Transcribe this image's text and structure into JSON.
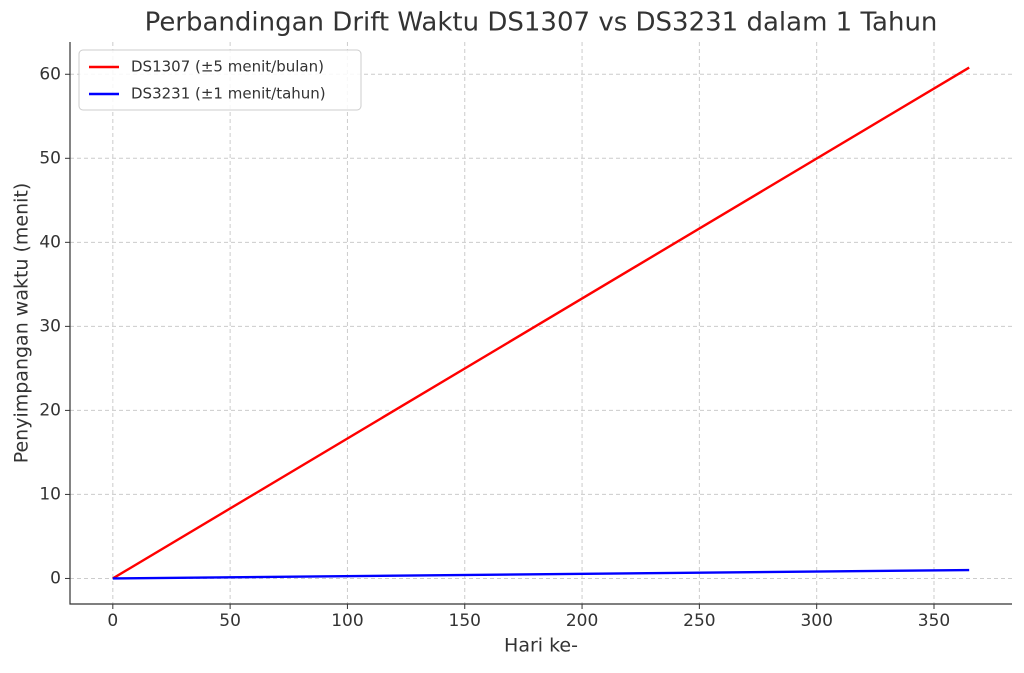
{
  "chart_data": {
    "type": "line",
    "title": "Perbandingan Drift Waktu DS1307 vs DS3231 dalam 1 Tahun",
    "x_label": "Hari ke-",
    "y_label": "Penyimpangan waktu (menit)",
    "x": [
      0,
      365
    ],
    "series": [
      {
        "name": "DS1307 (±5 menit/bulan)",
        "color": "#ff0000",
        "values": [
          0,
          60.8
        ]
      },
      {
        "name": "DS3231 (±1 menit/tahun)",
        "color": "#0000ff",
        "values": [
          0,
          1
        ]
      }
    ],
    "xlim": [
      -18.25,
      383.25
    ],
    "xticks": [
      0,
      50,
      100,
      150,
      200,
      250,
      300,
      350
    ],
    "ylim": [
      -3.04,
      63.84
    ],
    "yticks": [
      0,
      10,
      20,
      30,
      40,
      50,
      60
    ],
    "grid": true,
    "legend": "upper-left"
  }
}
